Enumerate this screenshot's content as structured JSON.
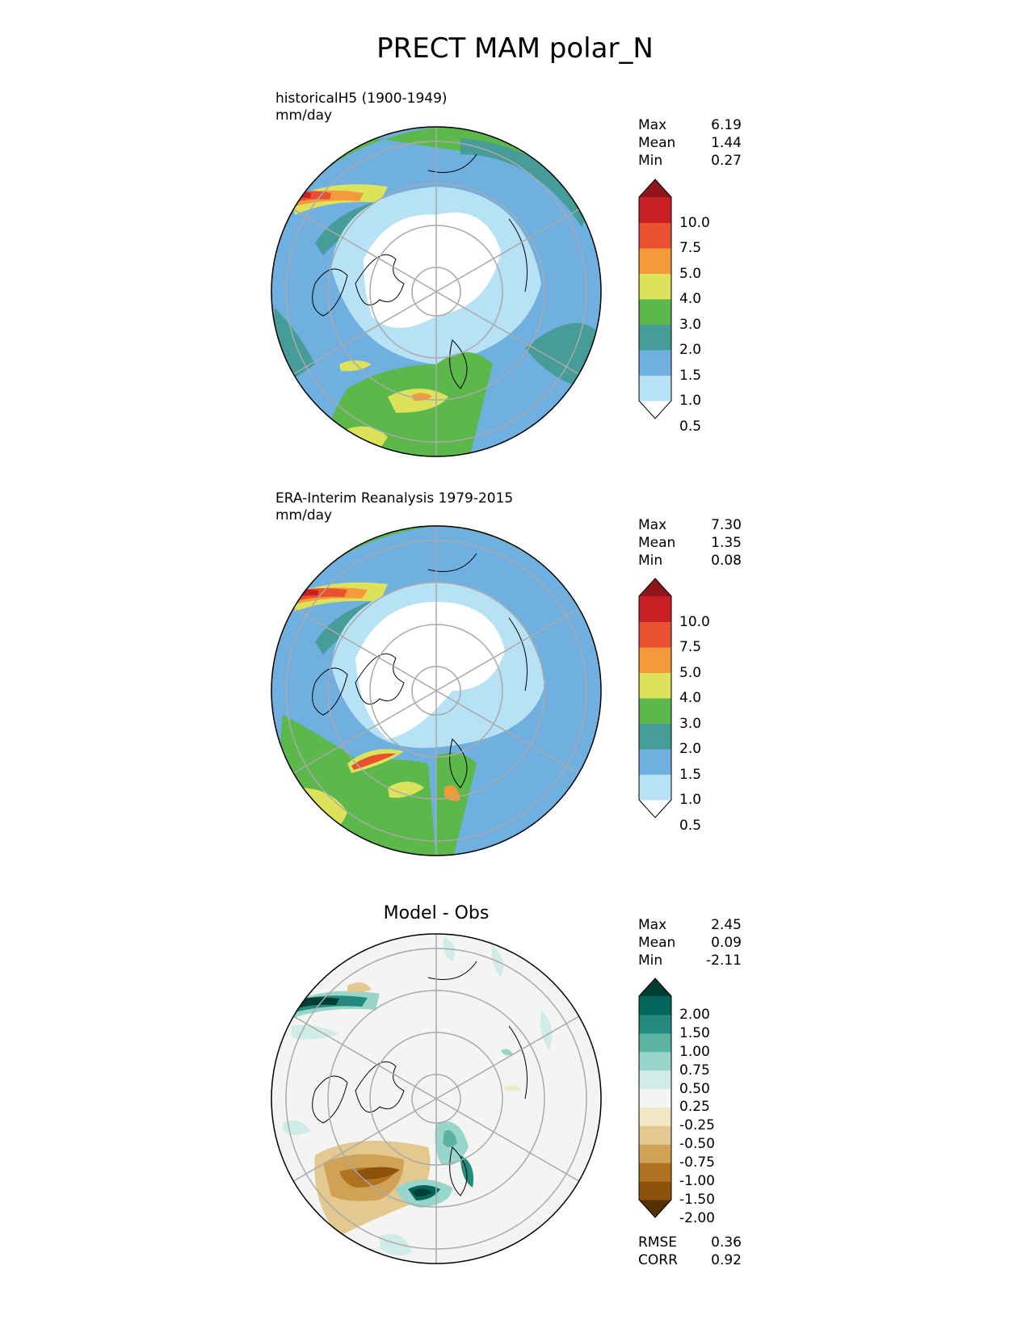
{
  "title": "PRECT MAM polar_N",
  "panels": [
    {
      "title_line1": "historicalH5 (1900-1949)",
      "title_line2": "mm/day",
      "stats": [
        {
          "label": "Max",
          "value": "6.19"
        },
        {
          "label": "Mean",
          "value": "1.44"
        },
        {
          "label": "Min",
          "value": "0.27"
        }
      ],
      "colorbar": {
        "ticks": [
          "10.0",
          "7.5",
          "5.0",
          "4.0",
          "3.0",
          "2.0",
          "1.5",
          "1.0",
          "0.5"
        ],
        "colors": [
          "#ffffff",
          "#b7e2f5",
          "#6fb0e0",
          "#469c98",
          "#5cb84a",
          "#dde25b",
          "#f59a3b",
          "#e8502f",
          "#c61f26",
          "#8f1519"
        ]
      }
    },
    {
      "title_line1": "ERA-Interim Reanalysis 1979-2015",
      "title_line2": "mm/day",
      "stats": [
        {
          "label": "Max",
          "value": "7.30"
        },
        {
          "label": "Mean",
          "value": "1.35"
        },
        {
          "label": "Min",
          "value": "0.08"
        }
      ],
      "colorbar": {
        "ticks": [
          "10.0",
          "7.5",
          "5.0",
          "4.0",
          "3.0",
          "2.0",
          "1.5",
          "1.0",
          "0.5"
        ],
        "colors": [
          "#ffffff",
          "#b7e2f5",
          "#6fb0e0",
          "#469c98",
          "#5cb84a",
          "#dde25b",
          "#f59a3b",
          "#e8502f",
          "#c61f26",
          "#8f1519"
        ]
      }
    },
    {
      "title": "Model - Obs",
      "stats": [
        {
          "label": "Max",
          "value": "2.45"
        },
        {
          "label": "Mean",
          "value": "0.09"
        },
        {
          "label": "Min",
          "value": "-2.11"
        }
      ],
      "colorbar": {
        "ticks": [
          "2.00",
          "1.50",
          "1.00",
          "0.75",
          "0.50",
          "0.25",
          "-0.25",
          "-0.50",
          "-0.75",
          "-1.00",
          "-1.50",
          "-2.00"
        ],
        "colors": [
          "#543005",
          "#8c510a",
          "#b07322",
          "#cfa255",
          "#e3c88f",
          "#f3e6c4",
          "#f4f4f2",
          "#d0ece8",
          "#98d5ca",
          "#5cb3a4",
          "#248a7d",
          "#00665c",
          "#003d33"
        ]
      },
      "metrics": [
        {
          "label": "RMSE",
          "value": "0.36"
        },
        {
          "label": "CORR",
          "value": "0.92"
        }
      ]
    }
  ]
}
